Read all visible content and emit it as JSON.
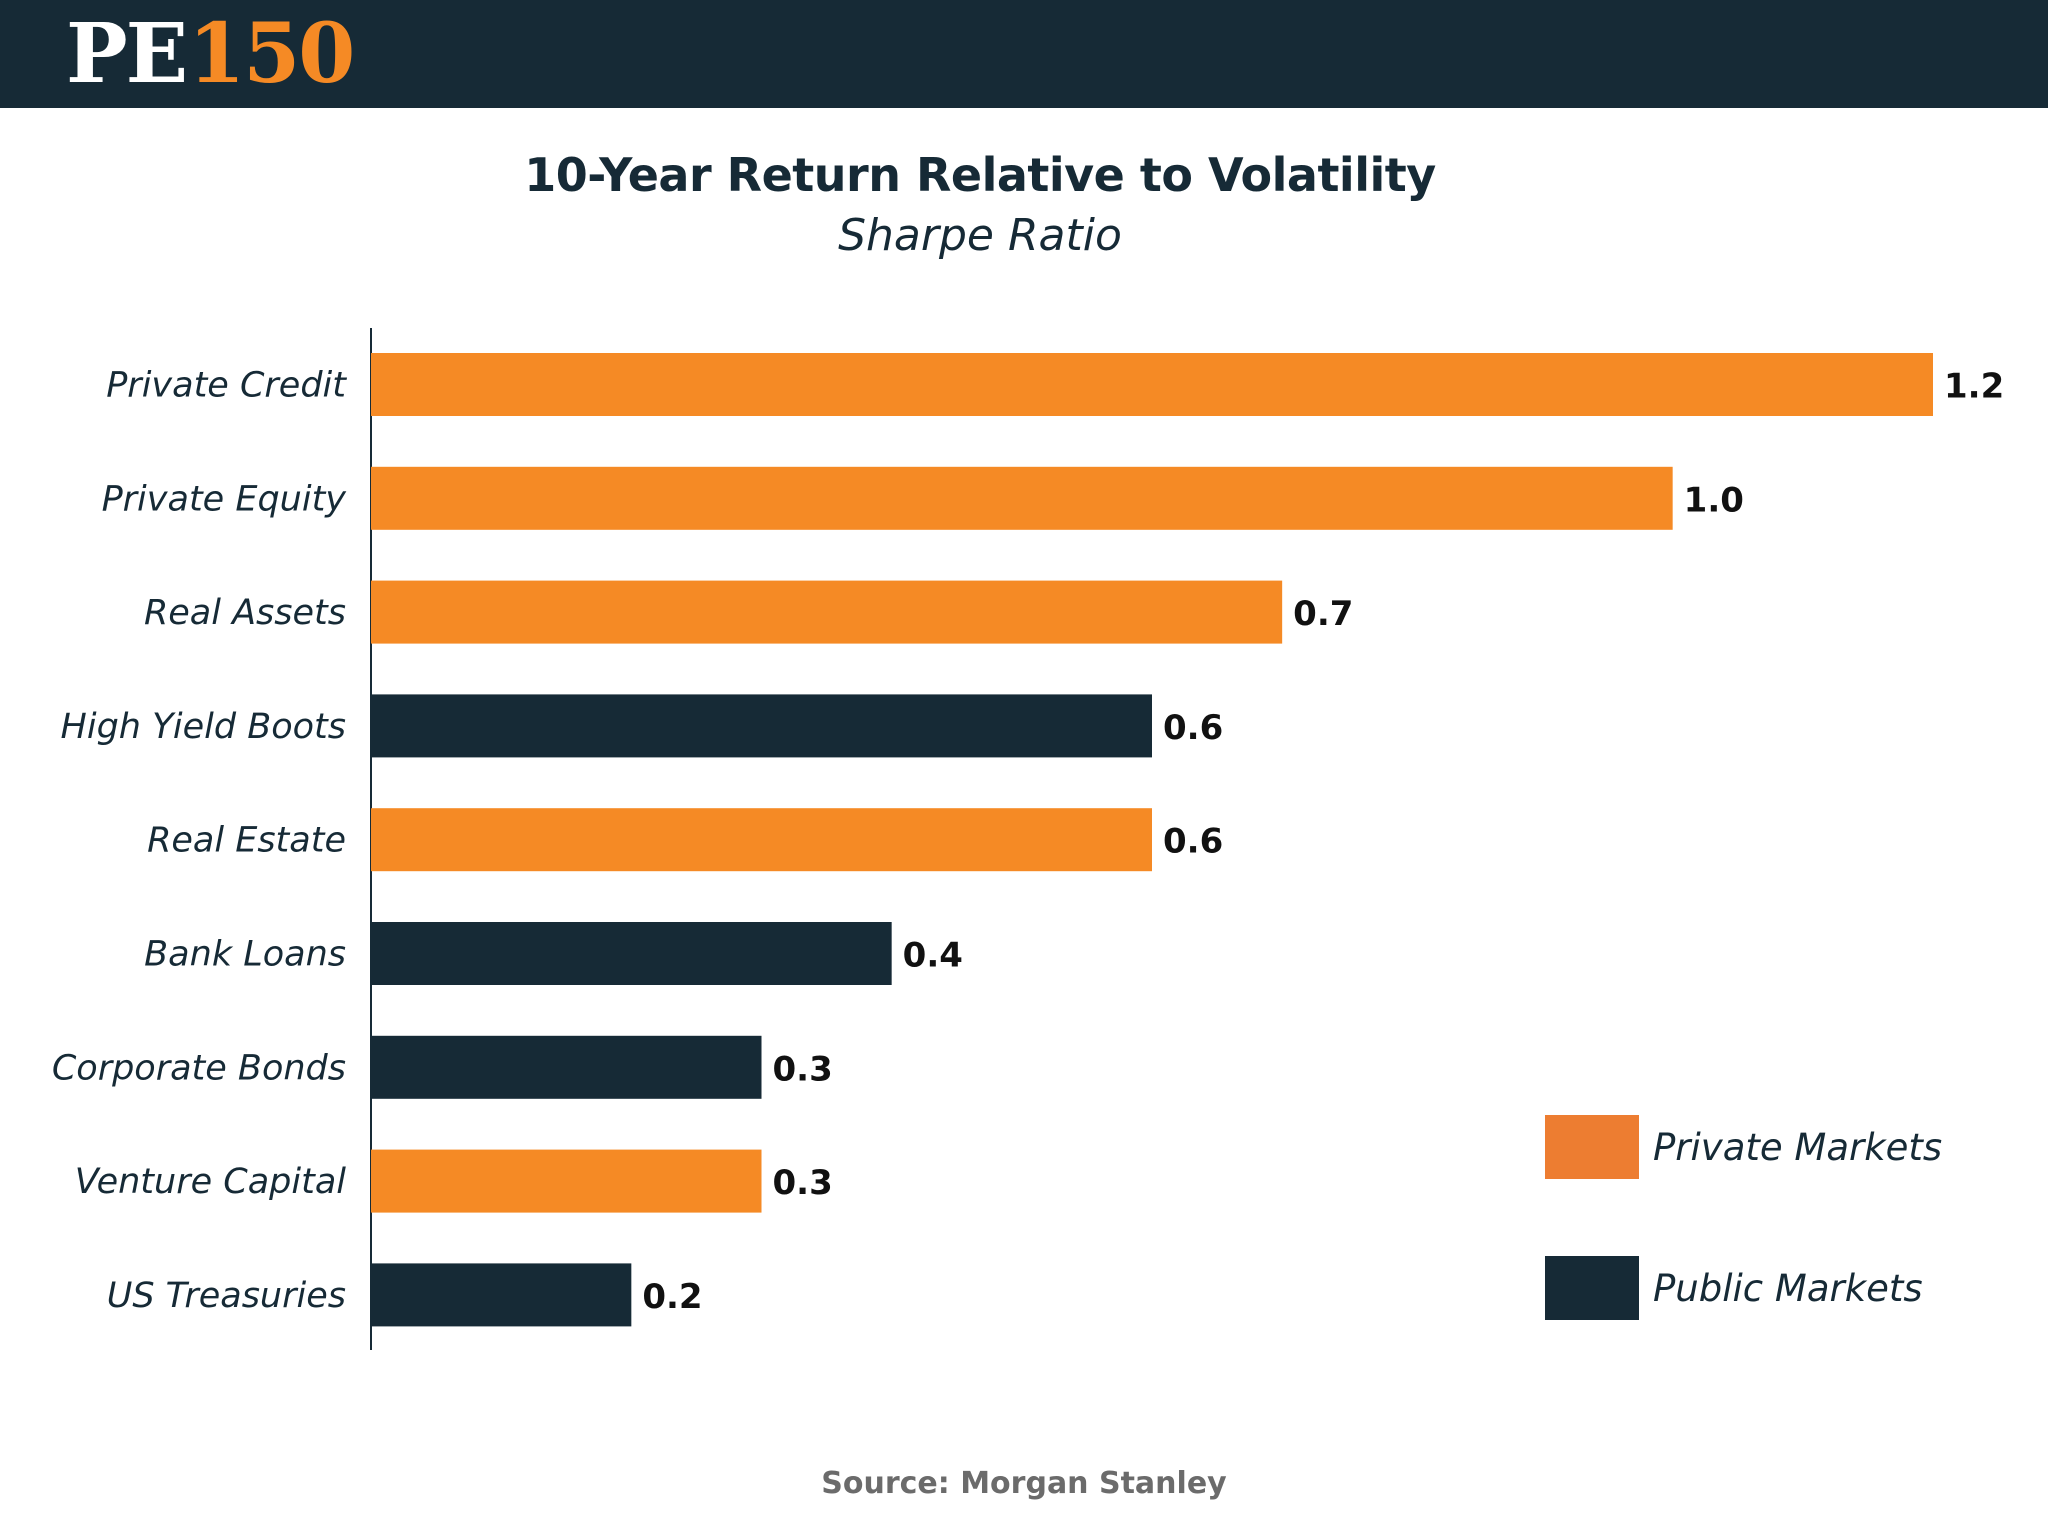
{
  "logo": {
    "pe": "PE",
    "number": "150"
  },
  "chart_data": {
    "type": "bar",
    "orientation": "horizontal",
    "title": "10-Year Return Relative to Volatility",
    "subtitle": "Sharpe Ratio",
    "xlabel": "",
    "ylabel": "",
    "xlim": [
      0,
      1.2
    ],
    "grid": false,
    "categories": [
      "Private Credit",
      "Private Equity",
      "Real Assets",
      "High Yield Boots",
      "Real Estate",
      "Bank Loans",
      "Corporate Bonds",
      "Venture Capital",
      "US Treasuries"
    ],
    "values": [
      1.2,
      1.0,
      0.7,
      0.6,
      0.6,
      0.4,
      0.3,
      0.3,
      0.2
    ],
    "value_labels": [
      "1.2",
      "1.0",
      "0.7",
      "0.6",
      "0.6",
      "0.4",
      "0.3",
      "0.3",
      "0.2"
    ],
    "groups": [
      "Private Markets",
      "Private Markets",
      "Private Markets",
      "Public Markets",
      "Private Markets",
      "Public Markets",
      "Public Markets",
      "Private Markets",
      "Public Markets"
    ],
    "legend": {
      "placement": "bottom-right",
      "entries": [
        {
          "name": "Private Markets",
          "color": "#f58a25",
          "swatch_color": "#ed7d31"
        },
        {
          "name": "Public Markets",
          "color": "#162a36",
          "swatch_color": "#162a36"
        }
      ]
    },
    "source": "Source: Morgan Stanley"
  },
  "colors": {
    "header": "#162a36",
    "accent": "#f58a25",
    "dark": "#162a36",
    "source_text": "#6b6b6b"
  }
}
